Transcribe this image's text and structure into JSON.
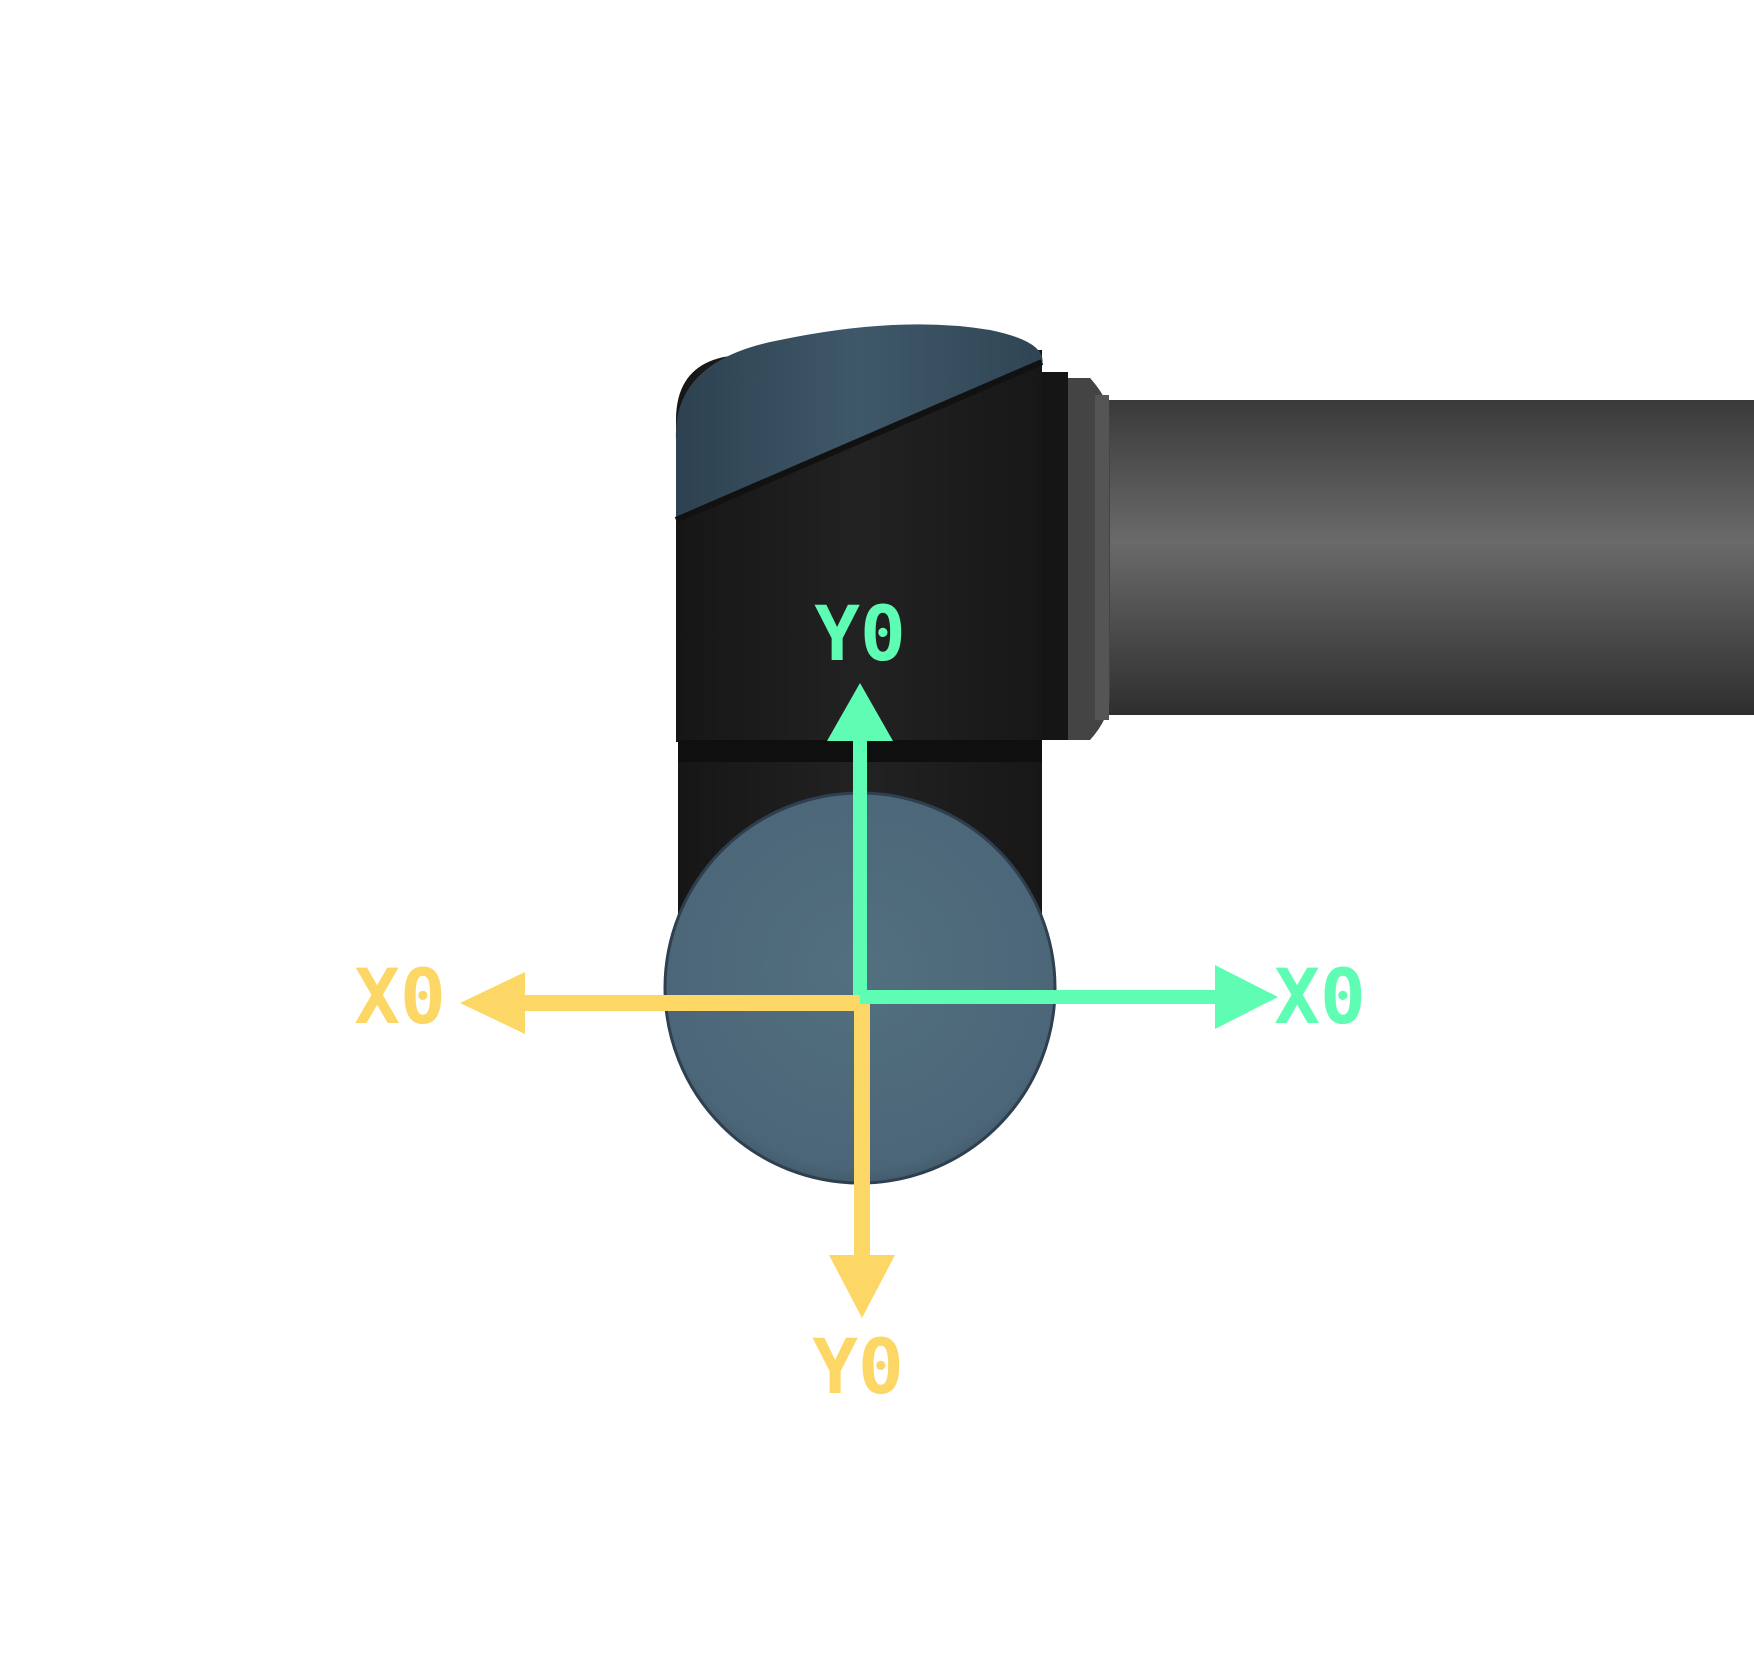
{
  "colors": {
    "background": "#ffffff",
    "frame_a": "#5ffdb4",
    "frame_b": "#fdd765",
    "joint_body": "#1c1c1c",
    "joint_cap": "#4e697d",
    "link_tube": "#5a5a5a"
  },
  "frames": {
    "green": {
      "x_label": "X0",
      "y_label": "Y0",
      "x_direction": "right",
      "y_direction": "up"
    },
    "yellow": {
      "x_label": "X0",
      "y_label": "Y0",
      "x_direction": "left",
      "y_direction": "down"
    }
  },
  "icons": {
    "robot": "robot-arm-joint-icon"
  }
}
